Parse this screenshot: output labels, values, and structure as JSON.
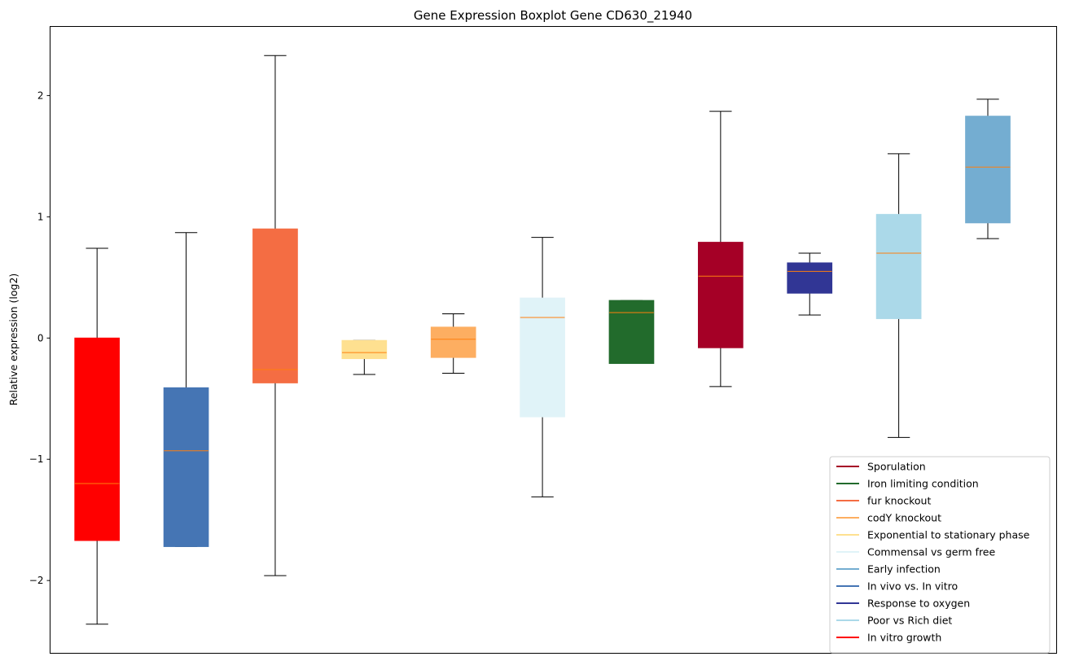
{
  "chart_data": {
    "type": "boxplot",
    "title": "Gene Expression Boxplot Gene CD630_21940",
    "xlabel": "",
    "ylabel": "Relative expression (log2)",
    "ylim": [
      -2.6,
      2.57
    ],
    "yticks": [
      -2,
      -1,
      0,
      1,
      2
    ],
    "ytick_labels": [
      "−2",
      "−1",
      "0",
      "1",
      "2"
    ],
    "xticks_visible": false,
    "grid": false,
    "legend_position": "bottom-right",
    "median_color": "#ff7f0e",
    "boxes": [
      {
        "color": "#ff0000",
        "whisker_low": -2.36,
        "q1": -1.67,
        "median": -1.2,
        "q3": 0.0,
        "whisker_high": 0.74
      },
      {
        "color": "#4575b4",
        "whisker_low": -1.72,
        "q1": -1.72,
        "median": -0.93,
        "q3": -0.41,
        "whisker_high": 0.87
      },
      {
        "color": "#f46d43",
        "whisker_low": -1.96,
        "q1": -0.37,
        "median": -0.26,
        "q3": 0.9,
        "whisker_high": 2.33
      },
      {
        "color": "#fee090",
        "whisker_low": -0.3,
        "q1": -0.17,
        "median": -0.12,
        "q3": -0.02,
        "whisker_high": -0.02
      },
      {
        "color": "#fdae61",
        "whisker_low": -0.29,
        "q1": -0.16,
        "median": -0.01,
        "q3": 0.09,
        "whisker_high": 0.2
      },
      {
        "color": "#e0f3f8",
        "whisker_low": -1.31,
        "q1": -0.65,
        "median": 0.17,
        "q3": 0.33,
        "whisker_high": 0.83
      },
      {
        "color": "#226b2c",
        "whisker_low": -0.21,
        "q1": -0.21,
        "median": 0.21,
        "q3": 0.31,
        "whisker_high": 0.31
      },
      {
        "color": "#a50026",
        "whisker_low": -0.4,
        "q1": -0.08,
        "median": 0.51,
        "q3": 0.79,
        "whisker_high": 1.87
      },
      {
        "color": "#313695",
        "whisker_low": 0.19,
        "q1": 0.37,
        "median": 0.55,
        "q3": 0.62,
        "whisker_high": 0.7
      },
      {
        "color": "#abd9e9",
        "whisker_low": -0.82,
        "q1": 0.16,
        "median": 0.7,
        "q3": 1.02,
        "whisker_high": 1.52
      },
      {
        "color": "#74add1",
        "whisker_low": 0.82,
        "q1": 0.95,
        "median": 1.41,
        "q3": 1.83,
        "whisker_high": 1.97
      }
    ],
    "legend": [
      {
        "label": "Sporulation",
        "color": "#a50026"
      },
      {
        "label": "Iron limiting condition",
        "color": "#226b2c"
      },
      {
        "label": "fur knockout",
        "color": "#f46d43"
      },
      {
        "label": "codY knockout",
        "color": "#fdae61"
      },
      {
        "label": "Exponential to stationary phase",
        "color": "#fee090"
      },
      {
        "label": "Commensal vs germ free",
        "color": "#e0f3f8"
      },
      {
        "label": "Early infection",
        "color": "#74add1"
      },
      {
        "label": "In vivo vs. In vitro",
        "color": "#4575b4"
      },
      {
        "label": "Response to oxygen",
        "color": "#313695"
      },
      {
        "label": "Poor vs Rich diet",
        "color": "#abd9e9"
      },
      {
        "label": "In vitro growth",
        "color": "#ff0000"
      }
    ]
  }
}
